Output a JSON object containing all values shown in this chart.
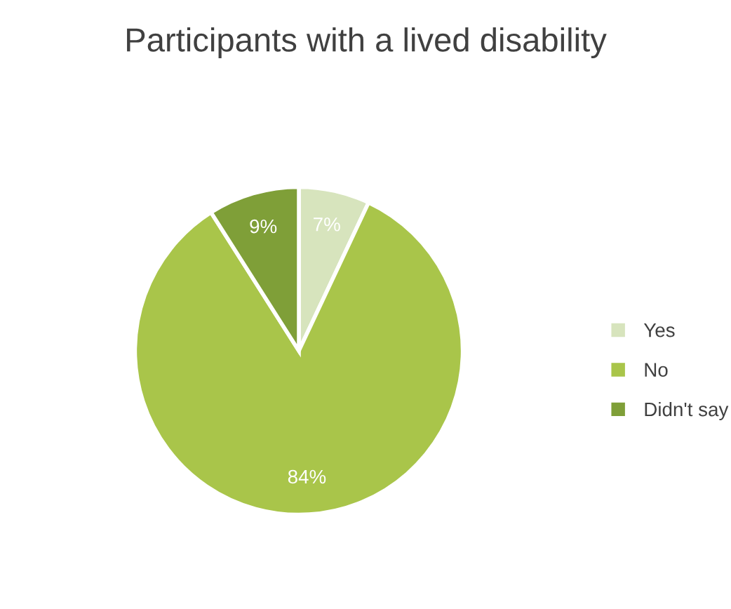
{
  "chart_data": {
    "type": "pie",
    "title": "Participants with a lived disability",
    "categories": [
      "Yes",
      "No",
      "Didn't say"
    ],
    "values": [
      7,
      84,
      9
    ],
    "colors": [
      "#d7e4bd",
      "#a9c54a",
      "#7f9f38"
    ],
    "value_labels": [
      "7%",
      "84%",
      "9%"
    ],
    "legend": "right"
  }
}
